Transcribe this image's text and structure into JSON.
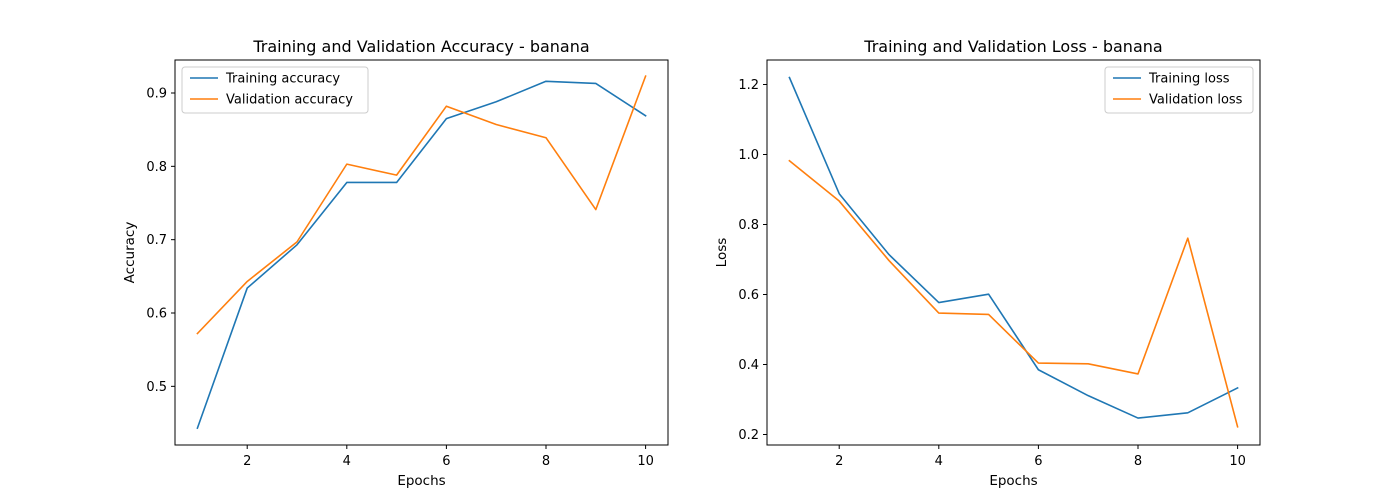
{
  "chart_data": [
    {
      "type": "line",
      "title": "Training and Validation Accuracy - banana",
      "xlabel": "Epochs",
      "ylabel": "Accuracy",
      "x": [
        1,
        2,
        3,
        4,
        5,
        6,
        7,
        8,
        9,
        10
      ],
      "xlim": [
        0.55,
        10.45
      ],
      "ylim": [
        0.42,
        0.945
      ],
      "xticks": [
        2,
        4,
        6,
        8,
        10
      ],
      "yticks": [
        0.5,
        0.6,
        0.7,
        0.8,
        0.9
      ],
      "ytick_labels": [
        "0.5",
        "0.6",
        "0.7",
        "0.8",
        "0.9"
      ],
      "grid": false,
      "legend_position": "upper left",
      "series": [
        {
          "name": "Training accuracy",
          "color": "#1f77b4",
          "values": [
            0.443,
            0.634,
            0.693,
            0.778,
            0.778,
            0.865,
            0.888,
            0.916,
            0.913,
            0.869
          ]
        },
        {
          "name": "Validation accuracy",
          "color": "#ff7f0e",
          "values": [
            0.572,
            0.643,
            0.697,
            0.803,
            0.788,
            0.882,
            0.857,
            0.839,
            0.741,
            0.923
          ]
        }
      ]
    },
    {
      "type": "line",
      "title": "Training and Validation Loss - banana",
      "xlabel": "Epochs",
      "ylabel": "Loss",
      "x": [
        1,
        2,
        3,
        4,
        5,
        6,
        7,
        8,
        9,
        10
      ],
      "xlim": [
        0.55,
        10.45
      ],
      "ylim": [
        0.17,
        1.27
      ],
      "xticks": [
        2,
        4,
        6,
        8,
        10
      ],
      "yticks": [
        0.2,
        0.4,
        0.6,
        0.8,
        1.0,
        1.2
      ],
      "ytick_labels": [
        "0.2",
        "0.4",
        "0.6",
        "0.8",
        "1.0",
        "1.2"
      ],
      "grid": false,
      "legend_position": "upper right",
      "series": [
        {
          "name": "Training loss",
          "color": "#1f77b4",
          "values": [
            1.22,
            0.888,
            0.714,
            0.577,
            0.601,
            0.385,
            0.311,
            0.247,
            0.262,
            0.333
          ]
        },
        {
          "name": "Validation loss",
          "color": "#ff7f0e",
          "values": [
            0.982,
            0.867,
            0.697,
            0.547,
            0.543,
            0.404,
            0.402,
            0.373,
            0.761,
            0.222
          ]
        }
      ]
    }
  ]
}
